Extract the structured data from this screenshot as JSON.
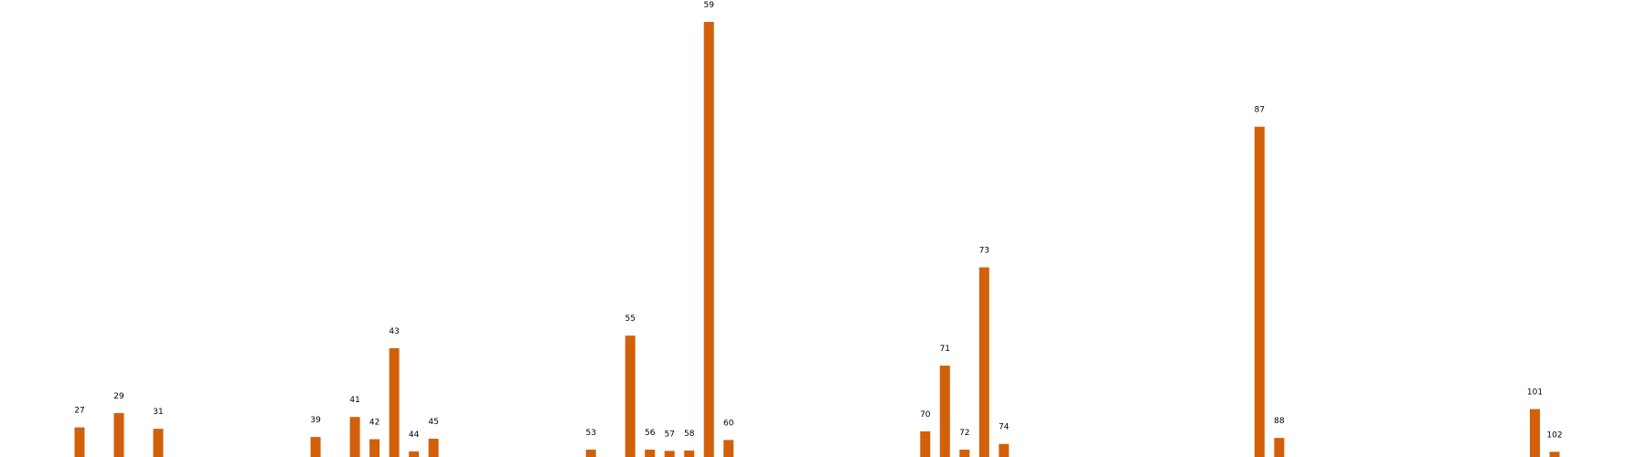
{
  "chart_data": {
    "type": "bar",
    "title": "",
    "xlabel": "",
    "ylabel": "",
    "grid": false,
    "legend": "none",
    "bar_color": "#d2600a",
    "ylim": [
      0,
      100
    ],
    "categories": [
      "27",
      "29",
      "31",
      "39",
      "41",
      "42",
      "43",
      "44",
      "45",
      "53",
      "55",
      "56",
      "57",
      "58",
      "59",
      "60",
      "70",
      "71",
      "72",
      "73",
      "74",
      "87",
      "88",
      "101",
      "102"
    ],
    "x": [
      27,
      29,
      31,
      39,
      41,
      42,
      43,
      44,
      45,
      53,
      55,
      56,
      57,
      58,
      59,
      60,
      70,
      71,
      72,
      73,
      74,
      87,
      88,
      101,
      102
    ],
    "values": [
      6.8,
      10.1,
      6.5,
      4.6,
      9.2,
      4.1,
      25.0,
      1.3,
      4.2,
      1.7,
      27.9,
      1.7,
      1.4,
      1.5,
      100.0,
      3.9,
      5.9,
      21.0,
      1.7,
      43.6,
      3.0,
      75.9,
      4.4,
      11.0,
      1.2
    ]
  }
}
